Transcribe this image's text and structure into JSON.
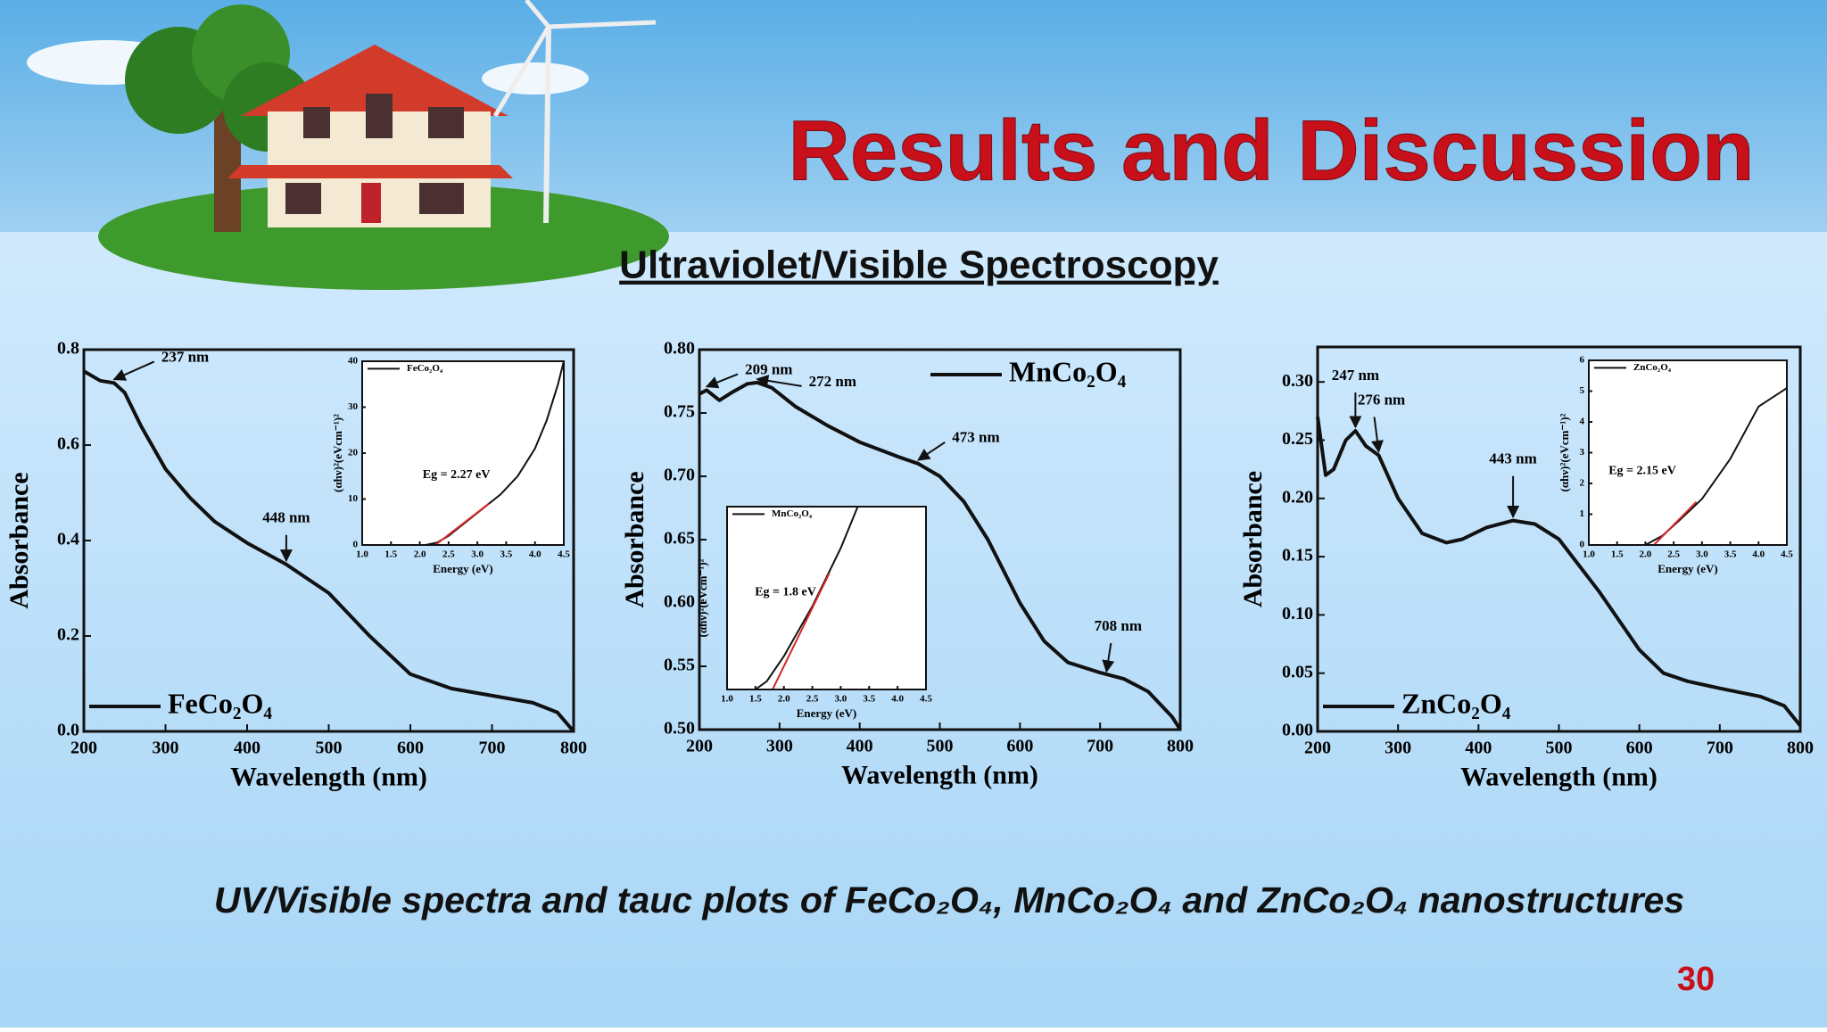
{
  "slide": {
    "title": "Results and Discussion",
    "subtitle": "Ultraviolet/Visible Spectroscopy",
    "caption": "UV/Visible spectra and tauc plots of FeCo₂O₄, MnCo₂O₄ and ZnCo₂O₄ nanostructures",
    "page_number": 30
  },
  "chart_data": [
    {
      "type": "line",
      "x_label": "Wavelength (nm)",
      "y_label": "Absorbance",
      "legend": "lower left",
      "xlim": [
        200,
        800
      ],
      "xticks": [
        200,
        300,
        400,
        500,
        600,
        700,
        800
      ],
      "ylim": [
        0,
        0.8
      ],
      "yticks": [
        {
          "value": 0,
          "label": "0.0"
        },
        0.2,
        0.4,
        0.6,
        0.8
      ],
      "series": [
        {
          "name": "FeCo₂O₄",
          "color": "#111111",
          "x": [
            200,
            220,
            237,
            250,
            270,
            300,
            330,
            360,
            400,
            448,
            500,
            550,
            600,
            650,
            700,
            750,
            780,
            800
          ],
          "values": [
            0.755,
            0.735,
            0.73,
            0.71,
            0.64,
            0.55,
            0.49,
            0.44,
            0.395,
            0.35,
            0.29,
            0.2,
            0.12,
            0.09,
            0.075,
            0.06,
            0.04,
            0.0
          ]
        }
      ],
      "annotations": [
        {
          "text": "237 nm",
          "x": 237,
          "y": 0.73
        },
        {
          "text": "448 nm",
          "x": 448,
          "y": 0.35
        }
      ],
      "inset": {
        "type": "line",
        "x_label": "Energy (eV)",
        "y_label": "(αhν)²(eVcm⁻¹)²",
        "legend": "upper left",
        "label": "Eg = 2.27 eV",
        "xlim": [
          1.0,
          4.5
        ],
        "xticks": [
          {
            "value": 1,
            "label": "1.0"
          },
          1.5,
          {
            "value": 2,
            "label": "2.0"
          },
          2.5,
          {
            "value": 3,
            "label": "3.0"
          },
          3.5,
          {
            "value": 4,
            "label": "4.0"
          },
          4.5
        ],
        "ylim": [
          0,
          40
        ],
        "yticks": [
          0,
          10,
          20,
          30,
          40
        ],
        "series": [
          {
            "name": "FeCo₂O₄",
            "color": "#111111",
            "x": [
              2.1,
              2.3,
              2.5,
              2.8,
              3.1,
              3.4,
              3.7,
              4.0,
              4.2,
              4.4,
              4.5
            ],
            "values": [
              0,
              0.5,
              2,
              5,
              8,
              11,
              15,
              21,
              27,
              35,
              40
            ]
          },
          {
            "color": "#d62728",
            "x": [
              2.27,
              3.2
            ],
            "values": [
              0,
              9
            ]
          }
        ]
      }
    },
    {
      "type": "line",
      "x_label": "Wavelength (nm)",
      "y_label": "Absorbance",
      "legend": "upper right",
      "xlim": [
        200,
        800
      ],
      "xticks": [
        200,
        300,
        400,
        500,
        600,
        700,
        800
      ],
      "ylim": [
        0.5,
        0.8
      ],
      "yticks": [
        {
          "value": 0.5,
          "label": "0.50"
        },
        0.55,
        {
          "value": 0.6,
          "label": "0.60"
        },
        0.65,
        {
          "value": 0.7,
          "label": "0.70"
        },
        0.75,
        {
          "value": 0.8,
          "label": "0.80"
        }
      ],
      "series": [
        {
          "name": "MnCo₂O₄",
          "color": "#111111",
          "x": [
            200,
            209,
            225,
            240,
            260,
            272,
            290,
            320,
            360,
            400,
            450,
            473,
            500,
            530,
            560,
            600,
            630,
            660,
            700,
            730,
            760,
            790,
            800
          ],
          "values": [
            0.765,
            0.768,
            0.76,
            0.766,
            0.773,
            0.774,
            0.77,
            0.755,
            0.74,
            0.727,
            0.715,
            0.71,
            0.7,
            0.68,
            0.65,
            0.6,
            0.57,
            0.553,
            0.545,
            0.54,
            0.53,
            0.51,
            0.5
          ]
        }
      ],
      "annotations": [
        {
          "text": "209 nm",
          "x": 209,
          "y": 0.768
        },
        {
          "text": "272 nm",
          "x": 272,
          "y": 0.774
        },
        {
          "text": "473 nm",
          "x": 473,
          "y": 0.71
        },
        {
          "text": "708 nm",
          "x": 708,
          "y": 0.543
        }
      ],
      "inset": {
        "type": "line",
        "x_label": "Energy (eV)",
        "y_label": "(αhν)²(eVcm⁻¹)²",
        "legend": "upper left",
        "label": "Eg = 1.8 eV",
        "xlim": [
          1.0,
          4.5
        ],
        "xticks": [
          {
            "value": 1,
            "label": "1.0"
          },
          1.5,
          {
            "value": 2,
            "label": "2.0"
          },
          2.5,
          {
            "value": 3,
            "label": "3.0"
          },
          3.5,
          {
            "value": 4,
            "label": "4.0"
          },
          4.5
        ],
        "ylim": [
          0,
          11
        ],
        "series": [
          {
            "name": "MnCo₂O₄",
            "color": "#111111",
            "x": [
              1.5,
              1.7,
              2.0,
              2.5,
              3.0,
              3.3
            ],
            "values": [
              0,
              0.5,
              2,
              5,
              8.5,
              11
            ]
          },
          {
            "color": "#d62728",
            "x": [
              1.8,
              2.8
            ],
            "values": [
              0,
              7
            ]
          }
        ]
      }
    },
    {
      "type": "line",
      "x_label": "Wavelength (nm)",
      "y_label": "Absorbance",
      "legend": "lower left",
      "xlim": [
        200,
        800
      ],
      "xticks": [
        200,
        300,
        400,
        500,
        600,
        700,
        800
      ],
      "ylim": [
        0,
        0.33
      ],
      "yticks": [
        {
          "value": 0,
          "label": "0.00"
        },
        0.05,
        {
          "value": 0.1,
          "label": "0.10"
        },
        0.15,
        {
          "value": 0.2,
          "label": "0.20"
        },
        0.25,
        {
          "value": 0.3,
          "label": "0.30"
        }
      ],
      "series": [
        {
          "name": "ZnCo₂O₄",
          "color": "#111111",
          "x": [
            200,
            210,
            220,
            235,
            247,
            260,
            276,
            300,
            330,
            360,
            380,
            410,
            443,
            470,
            500,
            550,
            600,
            630,
            660,
            700,
            750,
            780,
            800
          ],
          "values": [
            0.27,
            0.22,
            0.225,
            0.25,
            0.258,
            0.245,
            0.237,
            0.2,
            0.17,
            0.162,
            0.165,
            0.175,
            0.181,
            0.178,
            0.165,
            0.12,
            0.07,
            0.05,
            0.043,
            0.037,
            0.03,
            0.022,
            0.005
          ]
        }
      ],
      "annotations": [
        {
          "text": "247 nm",
          "x": 247,
          "y": 0.258
        },
        {
          "text": "276 nm",
          "x": 276,
          "y": 0.237
        },
        {
          "text": "443 nm",
          "x": 443,
          "y": 0.181
        }
      ],
      "inset": {
        "type": "line",
        "x_label": "Energy (eV)",
        "y_label": "(αhν)²(eVcm⁻¹)²",
        "legend": "upper left",
        "label": "Eg = 2.15 eV",
        "xlim": [
          1.0,
          4.5
        ],
        "xticks": [
          {
            "value": 1,
            "label": "1.0"
          },
          1.5,
          {
            "value": 2,
            "label": "2.0"
          },
          2.5,
          {
            "value": 3,
            "label": "3.0"
          },
          3.5,
          {
            "value": 4,
            "label": "4.0"
          },
          4.5
        ],
        "ylim": [
          0,
          6
        ],
        "yticks": [
          0,
          1,
          2,
          3,
          4,
          5,
          6
        ],
        "series": [
          {
            "name": "ZnCo₂O₄",
            "color": "#111111",
            "x": [
              2.0,
              2.3,
              2.6,
              3.0,
              3.5,
              4.0,
              4.5
            ],
            "values": [
              0,
              0.3,
              0.8,
              1.5,
              2.8,
              4.5,
              5.1
            ]
          },
          {
            "color": "#d62728",
            "x": [
              2.15,
              2.9
            ],
            "values": [
              0,
              1.4
            ]
          }
        ]
      }
    }
  ]
}
